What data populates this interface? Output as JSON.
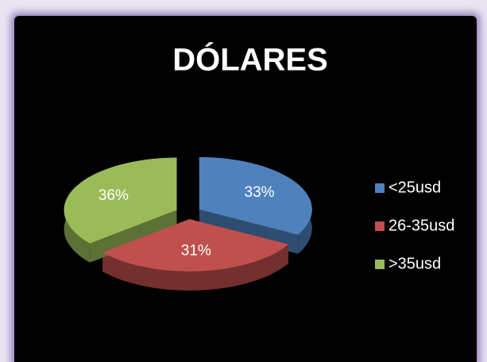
{
  "chart_data": {
    "type": "pie",
    "title": "DÓLARES",
    "categories": [
      "<25usd",
      "26-35usd",
      ">35usd"
    ],
    "values": [
      33,
      31,
      36
    ],
    "value_labels": [
      "33%",
      "31%",
      "36%"
    ],
    "colors": [
      "#4f81bd",
      "#c0504d",
      "#9bbb59"
    ],
    "legend": "right"
  }
}
